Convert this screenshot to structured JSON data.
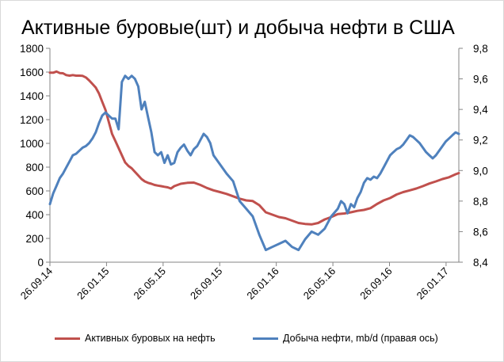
{
  "chart_data": {
    "type": "line",
    "title": "Активные буровые(шт) и добыча нефти в США",
    "y_left": {
      "min": 0,
      "max": 1800,
      "step": 200,
      "ticks": [
        "0",
        "200",
        "400",
        "600",
        "800",
        "1000",
        "1200",
        "1400",
        "1600",
        "1800"
      ]
    },
    "y_right": {
      "min": 8.4,
      "max": 9.8,
      "ticks": [
        "8,4",
        "8,6",
        "8,8",
        "9,0",
        "9,2",
        "9,4",
        "9,6",
        "9,8"
      ]
    },
    "x_ticks": [
      "26.09.14",
      "26.01.15",
      "26.05.15",
      "26.09.15",
      "26.01.16",
      "26.05.16",
      "26.09.16",
      "26.01.17"
    ],
    "x_range_weeks": [
      0,
      125
    ],
    "series": [
      {
        "name": "Активных буровых на нефть",
        "axis": "left",
        "color": "#c0504d",
        "x": [
          0,
          1,
          2,
          3,
          4,
          5,
          6,
          7,
          8,
          9,
          10,
          11,
          12,
          13,
          14,
          15,
          16,
          17,
          18,
          19,
          20,
          21,
          22,
          23,
          24,
          25,
          26,
          27,
          28,
          29,
          30,
          31,
          32,
          33,
          34,
          35,
          36,
          37,
          38,
          39,
          40,
          42,
          44,
          46,
          48,
          50,
          52,
          54,
          56,
          58,
          60,
          62,
          64,
          66,
          68,
          70,
          72,
          74,
          76,
          78,
          80,
          82,
          84,
          86,
          88,
          90,
          92,
          94,
          96,
          98,
          100,
          102,
          104,
          106,
          108,
          110,
          112,
          114,
          116,
          118,
          120,
          122,
          124,
          125
        ],
        "values": [
          1595,
          1595,
          1605,
          1592,
          1590,
          1575,
          1570,
          1575,
          1570,
          1570,
          1568,
          1555,
          1530,
          1500,
          1470,
          1420,
          1350,
          1280,
          1180,
          1080,
          1020,
          960,
          900,
          840,
          810,
          790,
          760,
          730,
          700,
          680,
          668,
          660,
          650,
          645,
          640,
          635,
          630,
          620,
          640,
          650,
          660,
          668,
          670,
          650,
          625,
          605,
          590,
          575,
          555,
          535,
          520,
          515,
          480,
          420,
          400,
          380,
          370,
          350,
          330,
          322,
          318,
          330,
          360,
          380,
          405,
          410,
          420,
          432,
          440,
          455,
          490,
          520,
          540,
          570,
          590,
          605,
          620,
          640,
          662,
          680,
          700,
          715,
          740,
          750
        ]
      },
      {
        "name": "Добыча нефти, mb/d (правая ось)",
        "axis": "right",
        "color": "#4f81bd",
        "x": [
          0,
          1,
          2,
          3,
          4,
          5,
          6,
          7,
          8,
          9,
          10,
          11,
          12,
          13,
          14,
          15,
          16,
          17,
          18,
          19,
          20,
          21,
          22,
          23,
          24,
          25,
          26,
          27,
          28,
          29,
          30,
          31,
          32,
          33,
          34,
          35,
          36,
          37,
          38,
          39,
          40,
          41,
          42,
          43,
          44,
          45,
          46,
          47,
          48,
          49,
          50,
          52,
          54,
          56,
          58,
          60,
          62,
          64,
          66,
          68,
          70,
          72,
          74,
          76,
          78,
          80,
          82,
          84,
          86,
          88,
          89,
          90,
          91,
          92,
          93,
          94,
          95,
          96,
          97,
          98,
          99,
          100,
          101,
          102,
          103,
          104,
          105,
          106,
          107,
          108,
          109,
          110,
          111,
          112,
          113,
          114,
          115,
          116,
          117,
          118,
          119,
          120,
          121,
          122,
          123,
          124,
          125
        ],
        "values": [
          8.78,
          8.85,
          8.9,
          8.95,
          8.98,
          9.02,
          9.06,
          9.1,
          9.11,
          9.13,
          9.15,
          9.16,
          9.18,
          9.21,
          9.25,
          9.31,
          9.36,
          9.38,
          9.36,
          9.34,
          9.34,
          9.27,
          9.58,
          9.62,
          9.6,
          9.62,
          9.6,
          9.55,
          9.4,
          9.45,
          9.35,
          9.25,
          9.12,
          9.1,
          9.12,
          9.05,
          9.1,
          9.04,
          9.05,
          9.12,
          9.15,
          9.17,
          9.13,
          9.1,
          9.14,
          9.16,
          9.2,
          9.24,
          9.22,
          9.18,
          9.1,
          9.04,
          8.98,
          8.93,
          8.8,
          8.75,
          8.7,
          8.58,
          8.48,
          8.5,
          8.52,
          8.54,
          8.5,
          8.48,
          8.55,
          8.6,
          8.58,
          8.62,
          8.7,
          8.75,
          8.8,
          8.78,
          8.72,
          8.78,
          8.76,
          8.82,
          8.86,
          8.92,
          8.95,
          8.94,
          8.96,
          8.95,
          8.98,
          9.02,
          9.06,
          9.1,
          9.12,
          9.14,
          9.15,
          9.17,
          9.2,
          9.23,
          9.22,
          9.2,
          9.18,
          9.15,
          9.12,
          9.1,
          9.08,
          9.1,
          9.13,
          9.16,
          9.19,
          9.21,
          9.23,
          9.25,
          9.24
        ]
      }
    ],
    "grid": false,
    "legend_position": "bottom"
  }
}
